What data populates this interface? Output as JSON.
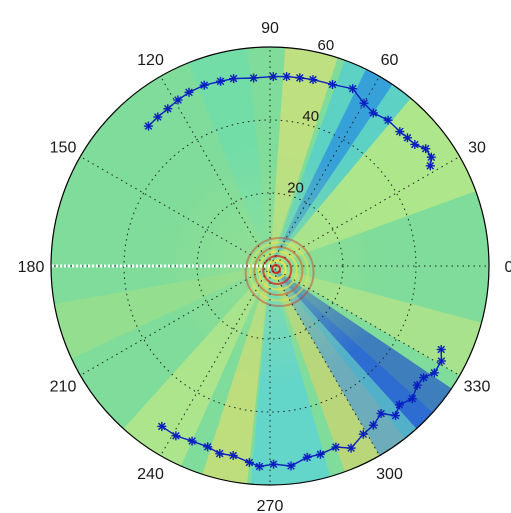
{
  "chart_data": {
    "type": "polar",
    "title": "",
    "background": "field colormap (jet), green-cyan dominant with radial yellow/blue streaks and concentric ripple rings at the center",
    "angle_ticks": [
      {
        "deg": 0,
        "label": "0"
      },
      {
        "deg": 30,
        "label": "30"
      },
      {
        "deg": 60,
        "label": "60"
      },
      {
        "deg": 90,
        "label": "90"
      },
      {
        "deg": 120,
        "label": "120"
      },
      {
        "deg": 150,
        "label": "150"
      },
      {
        "deg": 180,
        "label": "180"
      },
      {
        "deg": 210,
        "label": "210"
      },
      {
        "deg": 240,
        "label": "240"
      },
      {
        "deg": 270,
        "label": "270"
      },
      {
        "deg": 300,
        "label": "300"
      },
      {
        "deg": 330,
        "label": "330"
      }
    ],
    "radial_ticks": [
      {
        "value": 20,
        "label": "20"
      },
      {
        "value": 40,
        "label": "40"
      },
      {
        "value": 60,
        "label": "60"
      }
    ],
    "rlim": [
      0,
      60
    ],
    "grid": true,
    "series": [
      {
        "color": "#0a1fbf",
        "marker": "asterisk",
        "points": [
          [
            131,
            50.8
          ],
          [
            127,
            51.1
          ],
          [
            123,
            51.4
          ],
          [
            119,
            52
          ],
          [
            115,
            52.5
          ],
          [
            110,
            52.7
          ],
          [
            105,
            52.4
          ],
          [
            101,
            52.3
          ],
          [
            95,
            51.7
          ],
          [
            89,
            51.9
          ],
          [
            85,
            52.1
          ],
          [
            81,
            52.2
          ],
          [
            77,
            52.4
          ],
          [
            71,
            52.6
          ],
          [
            65,
            53.6
          ],
          [
            60,
            51.5
          ],
          [
            56,
            50.6
          ],
          [
            51,
            51.4
          ],
          [
            46,
            51.2
          ],
          [
            43,
            51.5
          ],
          [
            40,
            51.8
          ],
          [
            37,
            53.4
          ],
          [
            34,
            53.3
          ],
          [
            32,
            51.8
          ]
        ]
      },
      {
        "color": "#0a1fbf",
        "marker": "asterisk",
        "points": [
          [
            236,
            53.0
          ],
          [
            241,
            53.2
          ],
          [
            246,
            52.5
          ],
          [
            251,
            52.4
          ],
          [
            255,
            53.2
          ],
          [
            259,
            52.9
          ],
          [
            264,
            54.1
          ],
          [
            267,
            55.0
          ],
          [
            271,
            54.3
          ],
          [
            276,
            55.1
          ],
          [
            281,
            53.4
          ],
          [
            285,
            53.4
          ],
          [
            290,
            52.8
          ],
          [
            294,
            54.6
          ],
          [
            299,
            52.7
          ],
          [
            303,
            52.0
          ],
          [
            307,
            50.6
          ],
          [
            310,
            53.5
          ],
          [
            313,
            52.0
          ],
          [
            317,
            53.3
          ],
          [
            321,
            51.9
          ],
          [
            324,
            52.0
          ],
          [
            327,
            53.7
          ],
          [
            331,
            53.7
          ],
          [
            334,
            52.2
          ]
        ]
      },
      {
        "color": "#ffffff",
        "marker": "dot",
        "style": "dotted",
        "points": [
          [
            180,
            0
          ],
          [
            180,
            10
          ],
          [
            180,
            20
          ],
          [
            180,
            30
          ],
          [
            180,
            40
          ],
          [
            180,
            50
          ],
          [
            180,
            60.5
          ]
        ]
      }
    ]
  }
}
